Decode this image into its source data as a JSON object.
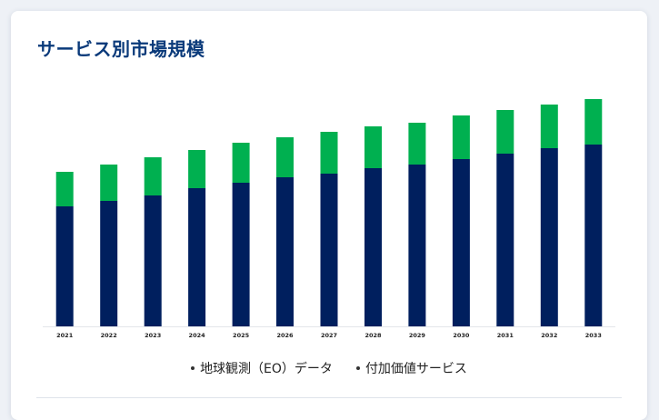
{
  "page": {
    "title": "サービス別市場規模"
  },
  "chart_data": {
    "type": "bar",
    "stacked": true,
    "title": "サービス別市場規模",
    "xlabel": "",
    "ylabel": "",
    "ylim": [
      0,
      125
    ],
    "categories": [
      "2021",
      "2022",
      "2023",
      "2024",
      "2025",
      "2026",
      "2027",
      "2028",
      "2029",
      "2030",
      "2031",
      "2032",
      "2033"
    ],
    "series": [
      {
        "name": "地球観測（EO）データ",
        "color": "#001f5e",
        "values": [
          66,
          69,
          72,
          76,
          79,
          82,
          84,
          87,
          89,
          92,
          95,
          98,
          100
        ]
      },
      {
        "name": "付加価値サービス",
        "color": "#00b050",
        "values": [
          19,
          20,
          21,
          21,
          22,
          22,
          23,
          23,
          23,
          24,
          24,
          24,
          25
        ]
      }
    ],
    "grid": false,
    "legend_position": "bottom"
  }
}
